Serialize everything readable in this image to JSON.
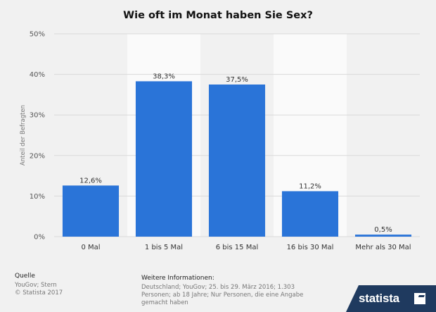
{
  "title": "Wie oft im Monat haben Sie Sex?",
  "chart_data": {
    "type": "bar",
    "categories": [
      "0 Mal",
      "1 bis 5 Mal",
      "6 bis 15 Mal",
      "16 bis 30 Mal",
      "Mehr als 30 Mal"
    ],
    "values": [
      12.6,
      38.3,
      37.5,
      11.2,
      0.5
    ],
    "value_labels": [
      "12,6%",
      "38,3%",
      "37,5%",
      "11,2%",
      "0,5%"
    ],
    "ylabel": "Anteil der Befragten",
    "xlabel": "",
    "ylim": [
      0,
      50
    ],
    "yticks": [
      0,
      10,
      20,
      30,
      40,
      50
    ],
    "ytick_labels": [
      "0%",
      "10%",
      "20%",
      "30%",
      "40%",
      "50%"
    ],
    "grid": true,
    "colors": {
      "bar": "#2a74d8",
      "band": "#fafafa",
      "grid": "#d9d9d9"
    }
  },
  "footer": {
    "source_heading": "Quelle",
    "source_lines": [
      "YouGov; Stern",
      "© Statista 2017"
    ],
    "info_heading": "Weitere Informationen:",
    "info_text": "Deutschland; YouGov; 25. bis 29. März 2016; 1.303 Personen; ab 18 Jahre; Nur Personen, die eine Angabe gemacht haben"
  },
  "brand": {
    "name": "statista"
  }
}
